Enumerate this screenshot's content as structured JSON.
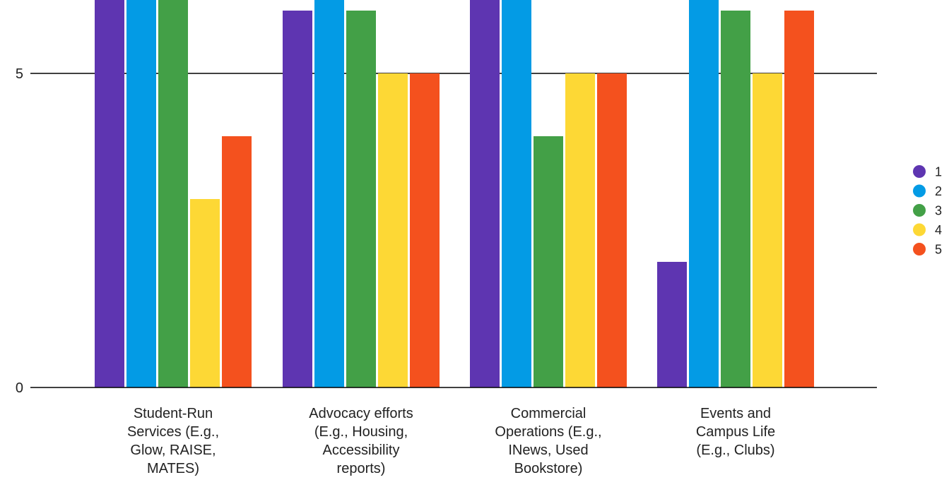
{
  "chart_data": {
    "type": "bar",
    "title": "",
    "xlabel": "",
    "ylabel": "",
    "ylim": [
      0,
      12
    ],
    "yticks": [
      0,
      5,
      10
    ],
    "grid": true,
    "legend_position": "right",
    "categories": [
      [
        "Student-Run",
        "Services (E.g.,",
        "Glow, RAISE,",
        "MATES)"
      ],
      [
        "Advocacy efforts",
        "(E.g., Housing,",
        "Accessibility",
        "reports)"
      ],
      [
        "Commercial",
        "Operations (E.g.,",
        "INews, Used",
        "Bookstore)"
      ],
      [
        "Events and",
        "Campus Life",
        "(E.g., Clubs)"
      ]
    ],
    "series": [
      {
        "name": "1",
        "color": "#5e35b1",
        "values": [
          9,
          6,
          7,
          2
        ]
      },
      {
        "name": "2",
        "color": "#039be5",
        "values": [
          9,
          9,
          10,
          12
        ]
      },
      {
        "name": "3",
        "color": "#43a047",
        "values": [
          7,
          6,
          4,
          6
        ]
      },
      {
        "name": "4",
        "color": "#fdd835",
        "values": [
          3,
          5,
          5,
          5
        ]
      },
      {
        "name": "5",
        "color": "#f4511e",
        "values": [
          4,
          5,
          5,
          6
        ]
      }
    ]
  }
}
